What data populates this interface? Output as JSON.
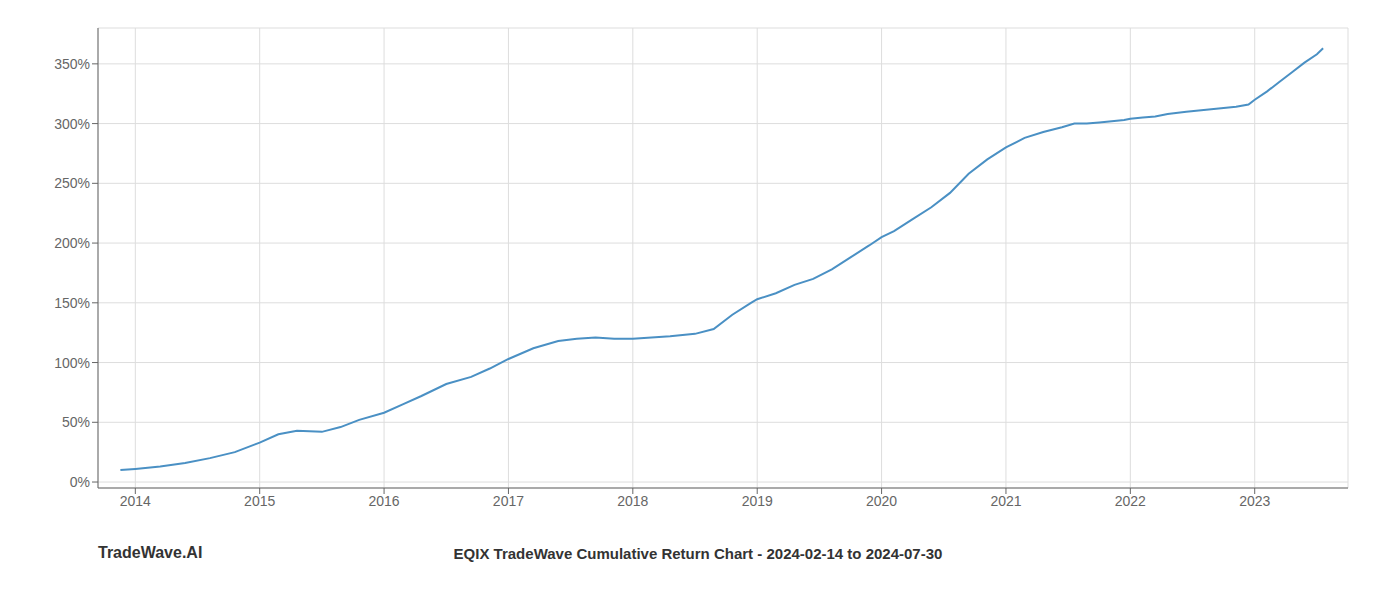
{
  "chart_data": {
    "type": "line",
    "title": "EQIX TradeWave Cumulative Return Chart - 2024-02-14 to 2024-07-30",
    "annotations": [
      "TradeWave.AI"
    ],
    "color": "#4a90c4",
    "grid": true,
    "xlim": [
      2013.7,
      2023.75
    ],
    "xticks": [
      2014,
      2015,
      2016,
      2017,
      2018,
      2019,
      2020,
      2021,
      2022,
      2023
    ],
    "ylim": [
      -5,
      380
    ],
    "yticks": [
      {
        "value": 0,
        "label": "0%"
      },
      {
        "value": 50,
        "label": "50%"
      },
      {
        "value": 100,
        "label": "100%"
      },
      {
        "value": 150,
        "label": "150%"
      },
      {
        "value": 200,
        "label": "200%"
      },
      {
        "value": 250,
        "label": "250%"
      },
      {
        "value": 300,
        "label": "300%"
      },
      {
        "value": 350,
        "label": "350%"
      }
    ],
    "x": [
      2013.88,
      2014.0,
      2014.2,
      2014.4,
      2014.6,
      2014.8,
      2015.0,
      2015.15,
      2015.3,
      2015.5,
      2015.65,
      2015.8,
      2016.0,
      2016.15,
      2016.3,
      2016.5,
      2016.7,
      2016.85,
      2017.0,
      2017.2,
      2017.4,
      2017.55,
      2017.7,
      2017.85,
      2018.0,
      2018.15,
      2018.3,
      2018.5,
      2018.65,
      2018.8,
      2018.95,
      2019.0,
      2019.15,
      2019.3,
      2019.45,
      2019.6,
      2019.75,
      2019.9,
      2020.0,
      2020.1,
      2020.25,
      2020.4,
      2020.55,
      2020.7,
      2020.85,
      2021.0,
      2021.15,
      2021.3,
      2021.45,
      2021.55,
      2021.65,
      2021.75,
      2021.85,
      2021.95,
      2022.0,
      2022.1,
      2022.2,
      2022.3,
      2022.45,
      2022.55,
      2022.65,
      2022.75,
      2022.85,
      2022.95,
      2023.0,
      2023.1,
      2023.2,
      2023.3,
      2023.4,
      2023.5,
      2023.55
    ],
    "values": [
      10,
      11,
      13,
      16,
      20,
      25,
      33,
      40,
      43,
      42,
      46,
      52,
      58,
      65,
      72,
      82,
      88,
      95,
      103,
      112,
      118,
      120,
      121,
      120,
      120,
      121,
      122,
      124,
      128,
      140,
      150,
      153,
      158,
      165,
      170,
      178,
      188,
      198,
      205,
      210,
      220,
      230,
      242,
      258,
      270,
      280,
      288,
      293,
      297,
      300,
      300,
      301,
      302,
      303,
      304,
      305,
      306,
      308,
      310,
      311,
      312,
      313,
      314,
      316,
      320,
      327,
      335,
      343,
      351,
      358,
      363
    ]
  }
}
